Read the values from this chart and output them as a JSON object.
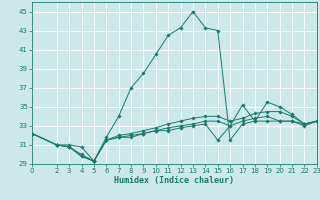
{
  "xlabel": "Humidex (Indice chaleur)",
  "bg_color": "#cde8e8",
  "grid_color": "#ffffff",
  "line_color": "#1a7a6e",
  "marker_color": "#1a7a6e",
  "xlim": [
    0,
    23
  ],
  "ylim": [
    29,
    46
  ],
  "xticks": [
    0,
    2,
    3,
    4,
    5,
    6,
    7,
    8,
    9,
    10,
    11,
    12,
    13,
    14,
    15,
    16,
    17,
    18,
    19,
    20,
    21,
    22,
    23
  ],
  "yticks": [
    29,
    31,
    33,
    35,
    37,
    39,
    41,
    43,
    45
  ],
  "lines": [
    {
      "x": [
        0,
        2,
        3,
        4,
        5,
        6,
        7,
        8,
        9,
        10,
        11,
        12,
        13,
        14,
        15,
        16,
        17,
        18,
        19,
        20,
        21,
        22,
        23
      ],
      "y": [
        32.2,
        31.0,
        31.0,
        30.8,
        29.3,
        31.8,
        34.0,
        37.0,
        38.5,
        40.5,
        42.5,
        43.3,
        45.0,
        43.3,
        43.0,
        31.5,
        33.2,
        33.5,
        35.5,
        35.0,
        34.2,
        33.2,
        33.5
      ]
    },
    {
      "x": [
        0,
        2,
        3,
        4,
        5,
        6,
        7,
        8,
        9,
        10,
        11,
        12,
        13,
        14,
        15,
        16,
        17,
        18,
        19,
        20,
        21,
        22,
        23
      ],
      "y": [
        32.2,
        31.0,
        30.8,
        30.0,
        29.3,
        31.5,
        32.0,
        32.2,
        32.5,
        32.8,
        33.2,
        33.5,
        33.8,
        34.0,
        34.0,
        33.5,
        33.8,
        34.3,
        34.5,
        34.5,
        34.0,
        33.2,
        33.5
      ]
    },
    {
      "x": [
        0,
        2,
        3,
        4,
        5,
        6,
        7,
        8,
        9,
        10,
        11,
        12,
        13,
        14,
        15,
        16,
        17,
        18,
        19,
        20,
        21,
        22,
        23
      ],
      "y": [
        32.2,
        31.0,
        30.8,
        29.8,
        29.3,
        31.5,
        31.8,
        32.0,
        32.2,
        32.5,
        32.8,
        33.0,
        33.2,
        33.5,
        33.5,
        33.0,
        33.5,
        33.8,
        34.0,
        33.5,
        33.5,
        33.2,
        33.5
      ]
    },
    {
      "x": [
        0,
        2,
        3,
        4,
        5,
        6,
        7,
        8,
        9,
        10,
        11,
        12,
        13,
        14,
        15,
        16,
        17,
        18,
        19,
        20,
        21,
        22,
        23
      ],
      "y": [
        32.2,
        31.0,
        30.8,
        29.8,
        29.3,
        31.5,
        31.8,
        31.8,
        32.2,
        32.5,
        32.5,
        32.8,
        33.0,
        33.2,
        31.5,
        33.0,
        35.2,
        33.5,
        33.5,
        33.5,
        33.5,
        33.0,
        33.5
      ]
    }
  ]
}
